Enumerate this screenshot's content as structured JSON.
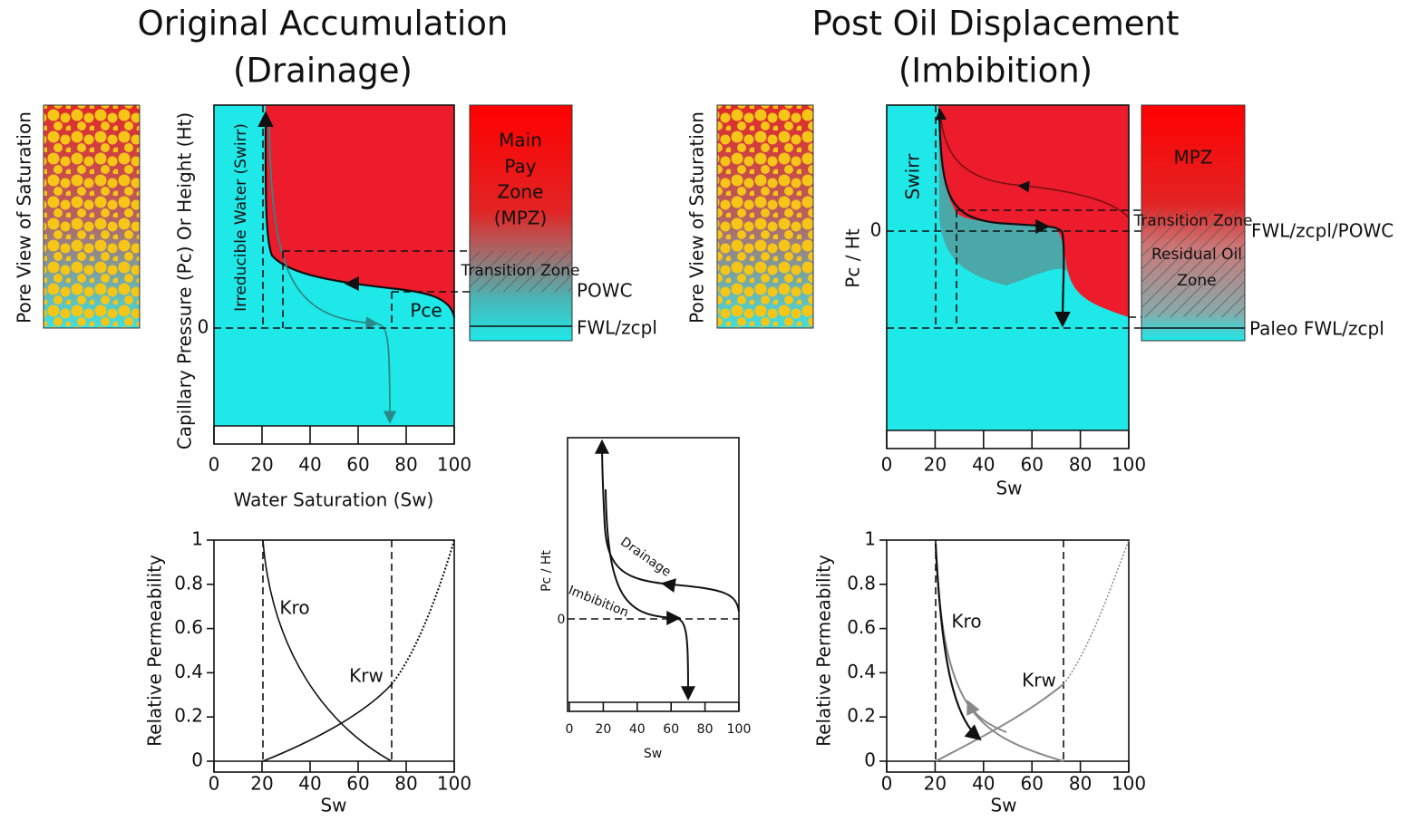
{
  "titles": {
    "left": [
      "Original Accumulation",
      "(Drainage)"
    ],
    "right": [
      "Post Oil Displacement",
      "(Imbibition)"
    ]
  },
  "drainage": {
    "pore_label": "Pore View of Saturation",
    "y_label": "Capillary Pressure (Pc)  Or Height (Ht)",
    "x_label": "Water Saturation (Sw)",
    "swirr_label": "Irreducible Water (Swirr)",
    "pce_label": "Pce",
    "zero_label": "0",
    "xticks": [
      0,
      20,
      40,
      60,
      80,
      100
    ],
    "zone_labels": [
      "Main",
      "Pay",
      "Zone",
      "(MPZ)"
    ],
    "transition_label": "Transition Zone",
    "powc_label": "POWC",
    "fwl_label": "FWL/zcpl"
  },
  "imbibition": {
    "pore_label": "Pore View of Saturation",
    "y_label": "Pc / Ht",
    "x_label": "Sw",
    "swirr_label": "Swirr",
    "zero_label": "0",
    "xticks": [
      0,
      20,
      40,
      60,
      80,
      100
    ],
    "mpz_label": "MPZ",
    "transition_label": "Transition Zone",
    "residual_labels": [
      "Residual Oil",
      "Zone"
    ],
    "fwl_label": "FWL/zcpl/POWC",
    "paleo_label": "Paleo FWL/zcpl"
  },
  "inset": {
    "y_label": "Pc / Ht",
    "x_label": "Sw",
    "zero_label": "0",
    "xticks": [
      0,
      20,
      40,
      60,
      80,
      100
    ],
    "drainage_label": "Drainage",
    "imbibition_label": "Imbibition"
  },
  "relperm_left": {
    "y_label": "Relative Permeability",
    "x_label": "Sw",
    "xticks": [
      0,
      20,
      40,
      60,
      80,
      100
    ],
    "yticks": [
      0,
      0.2,
      0.4,
      0.6,
      0.8,
      1
    ],
    "kro_label": "Kro",
    "krw_label": "Krw"
  },
  "relperm_right": {
    "y_label": "Relative Permeability",
    "x_label": "Sw",
    "xticks": [
      0,
      20,
      40,
      60,
      80,
      100
    ],
    "yticks": [
      0,
      0.2,
      0.4,
      0.6,
      0.8,
      1
    ],
    "kro_label": "Kro",
    "krw_label": "Krw"
  }
}
